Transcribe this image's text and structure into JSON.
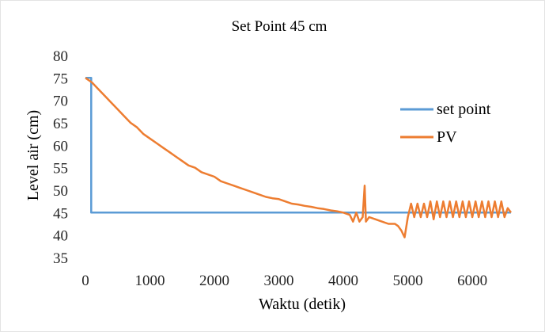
{
  "chart_data": {
    "type": "line",
    "title": "Set Point 45 cm",
    "xlabel": "Waktu (detik)",
    "ylabel": "Level air (cm)",
    "xlim": [
      0,
      6600
    ],
    "ylim": [
      35,
      80
    ],
    "xticks": [
      0,
      1000,
      2000,
      3000,
      4000,
      5000,
      6000
    ],
    "yticks": [
      35,
      40,
      45,
      50,
      55,
      60,
      65,
      70,
      75,
      80
    ],
    "grid": false,
    "legend": "right",
    "series": [
      {
        "name": "set point",
        "color": "#5B9BD5",
        "x": [
          0,
          90,
          90,
          6600
        ],
        "y": [
          75,
          75,
          45,
          45
        ]
      },
      {
        "name": "PV",
        "color": "#ED7D31",
        "x": [
          0,
          100,
          200,
          300,
          400,
          500,
          600,
          700,
          800,
          900,
          1000,
          1100,
          1200,
          1300,
          1400,
          1500,
          1600,
          1700,
          1800,
          1900,
          2000,
          2100,
          2200,
          2300,
          2400,
          2500,
          2600,
          2700,
          2800,
          2900,
          3000,
          3100,
          3200,
          3300,
          3400,
          3500,
          3600,
          3700,
          3800,
          3900,
          4000,
          4100,
          4150,
          4200,
          4250,
          4300,
          4330,
          4350,
          4400,
          4500,
          4600,
          4700,
          4800,
          4850,
          4900,
          4950,
          5000,
          5050,
          5100,
          5150,
          5200,
          5250,
          5300,
          5350,
          5400,
          5450,
          5500,
          5550,
          5600,
          5650,
          5700,
          5750,
          5800,
          5850,
          5900,
          5950,
          6000,
          6050,
          6100,
          6150,
          6200,
          6250,
          6300,
          6350,
          6400,
          6450,
          6500,
          6550,
          6600
        ],
        "y": [
          75,
          74,
          72.5,
          71,
          69.5,
          68,
          66.5,
          65,
          64,
          62.5,
          61.5,
          60.5,
          59.5,
          58.5,
          57.5,
          56.5,
          55.5,
          55,
          54,
          53.5,
          53,
          52,
          51.5,
          51,
          50.5,
          50,
          49.5,
          49,
          48.5,
          48.2,
          48,
          47.5,
          47,
          46.8,
          46.5,
          46.3,
          46,
          45.8,
          45.5,
          45.3,
          45,
          44.5,
          43,
          45,
          43,
          44,
          51,
          43,
          44,
          43.5,
          43,
          42.5,
          42.5,
          42,
          41,
          39.5,
          44,
          47,
          44,
          47,
          44,
          47,
          44,
          47.5,
          43.5,
          47.5,
          44,
          47.5,
          44,
          47.5,
          44,
          47.5,
          44,
          47.5,
          44,
          47.5,
          44,
          47.5,
          44,
          47.5,
          44,
          47.5,
          44,
          47.5,
          44,
          47.5,
          44,
          46,
          45
        ]
      }
    ]
  }
}
